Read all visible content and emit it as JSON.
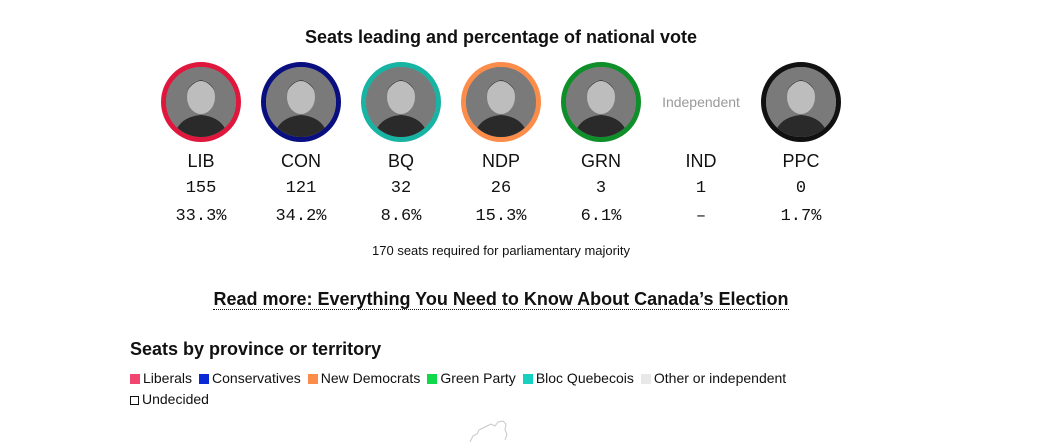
{
  "title": "Seats leading and percentage of national vote",
  "parties": [
    {
      "abbr": "LIB",
      "seats": "155",
      "pct": "33.3%",
      "color": "#e0173d",
      "portrait": "leader-photo"
    },
    {
      "abbr": "CON",
      "seats": "121",
      "pct": "34.2%",
      "color": "#0a0f80",
      "portrait": "leader-photo"
    },
    {
      "abbr": "BQ",
      "seats": "32",
      "pct": "8.6%",
      "color": "#17b3a3",
      "portrait": "leader-photo"
    },
    {
      "abbr": "NDP",
      "seats": "26",
      "pct": "15.3%",
      "color": "#fb8c4a",
      "portrait": "leader-photo"
    },
    {
      "abbr": "GRN",
      "seats": "3",
      "pct": "6.1%",
      "color": "#0f8f2a",
      "portrait": "leader-photo"
    },
    {
      "abbr": "IND",
      "seats": "1",
      "pct": "–",
      "label": "Independent"
    },
    {
      "abbr": "PPC",
      "seats": "0",
      "pct": "1.7%",
      "color": "#111111",
      "portrait": "leader-photo"
    }
  ],
  "majority_note": "170 seats required for parliamentary majority",
  "read_more": "Read more: Everything You Need to Know About Canada’s Election",
  "section_title": "Seats by province or territory",
  "legend": [
    {
      "label": "Liberals",
      "color": "#f2456f"
    },
    {
      "label": "Conservatives",
      "color": "#0a2ad6"
    },
    {
      "label": "New Democrats",
      "color": "#fb8c4a"
    },
    {
      "label": "Green Party",
      "color": "#0fd94a"
    },
    {
      "label": "Bloc Quebecois",
      "color": "#16d0c0"
    },
    {
      "label": "Other or independent",
      "color": "#e8e8e8"
    },
    {
      "label": "Undecided",
      "color": "#ffffff",
      "outline": true
    }
  ]
}
